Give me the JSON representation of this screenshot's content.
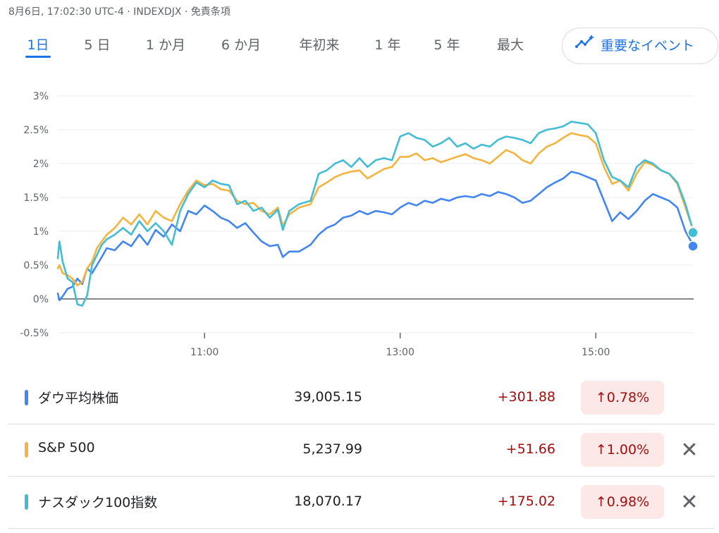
{
  "header": {
    "meta_text": "8月6日, 17:02:30 UTC-4 · INDEXDJX · 免責条項",
    "tabs": [
      {
        "label": "1日"
      },
      {
        "label": "5 日"
      },
      {
        "label": "1 か月"
      },
      {
        "label": "6 か月"
      },
      {
        "label": "年初来"
      },
      {
        "label": "1 年"
      },
      {
        "label": "5 年"
      },
      {
        "label": "最大"
      }
    ],
    "active_tab": 0,
    "events_button_label": "重要なイベント",
    "events_icon": "sparkle-chart-icon"
  },
  "chart_data": {
    "type": "line",
    "x_domain": [
      "09:30",
      "16:00"
    ],
    "ylim": [
      -0.5,
      3
    ],
    "y_ticks": [
      "3%",
      "2.5%",
      "2%",
      "1.5%",
      "1%",
      "0.5%",
      "0%",
      "-0.5%"
    ],
    "x_ticks": [
      "11:00",
      "13:00",
      "15:00"
    ],
    "grid": true,
    "baseline": 0,
    "series": [
      {
        "name": "ダウ平均株価",
        "color": "#4285f4",
        "points": [
          [
            "09:30",
            0.08
          ],
          [
            "09:31",
            -0.02
          ],
          [
            "09:33",
            0.04
          ],
          [
            "09:36",
            0.15
          ],
          [
            "09:39",
            0.18
          ],
          [
            "09:42",
            0.3
          ],
          [
            "09:45",
            0.22
          ],
          [
            "09:48",
            0.45
          ],
          [
            "09:51",
            0.38
          ],
          [
            "09:54",
            0.5
          ],
          [
            "09:57",
            0.62
          ],
          [
            "10:00",
            0.75
          ],
          [
            "10:05",
            0.72
          ],
          [
            "10:10",
            0.85
          ],
          [
            "10:15",
            0.78
          ],
          [
            "10:20",
            0.95
          ],
          [
            "10:25",
            0.8
          ],
          [
            "10:30",
            1.02
          ],
          [
            "10:35",
            0.92
          ],
          [
            "10:40",
            1.1
          ],
          [
            "10:45",
            1.0
          ],
          [
            "10:50",
            1.3
          ],
          [
            "10:55",
            1.25
          ],
          [
            "11:00",
            1.38
          ],
          [
            "11:05",
            1.3
          ],
          [
            "11:10",
            1.2
          ],
          [
            "11:15",
            1.15
          ],
          [
            "11:20",
            1.05
          ],
          [
            "11:25",
            1.12
          ],
          [
            "11:30",
            0.98
          ],
          [
            "11:35",
            0.85
          ],
          [
            "11:40",
            0.78
          ],
          [
            "11:45",
            0.8
          ],
          [
            "11:48",
            0.62
          ],
          [
            "11:52",
            0.7
          ],
          [
            "11:58",
            0.7
          ],
          [
            "12:05",
            0.8
          ],
          [
            "12:10",
            0.95
          ],
          [
            "12:15",
            1.05
          ],
          [
            "12:20",
            1.1
          ],
          [
            "12:25",
            1.2
          ],
          [
            "12:30",
            1.23
          ],
          [
            "12:35",
            1.3
          ],
          [
            "12:40",
            1.25
          ],
          [
            "12:45",
            1.3
          ],
          [
            "12:50",
            1.28
          ],
          [
            "12:55",
            1.25
          ],
          [
            "13:00",
            1.35
          ],
          [
            "13:05",
            1.42
          ],
          [
            "13:10",
            1.38
          ],
          [
            "13:15",
            1.45
          ],
          [
            "13:20",
            1.42
          ],
          [
            "13:25",
            1.48
          ],
          [
            "13:30",
            1.45
          ],
          [
            "13:35",
            1.5
          ],
          [
            "13:40",
            1.52
          ],
          [
            "13:45",
            1.5
          ],
          [
            "13:50",
            1.55
          ],
          [
            "13:55",
            1.52
          ],
          [
            "14:00",
            1.58
          ],
          [
            "14:05",
            1.55
          ],
          [
            "14:10",
            1.5
          ],
          [
            "14:15",
            1.42
          ],
          [
            "14:20",
            1.45
          ],
          [
            "14:25",
            1.55
          ],
          [
            "14:30",
            1.65
          ],
          [
            "14:35",
            1.72
          ],
          [
            "14:40",
            1.78
          ],
          [
            "14:45",
            1.88
          ],
          [
            "14:50",
            1.85
          ],
          [
            "14:55",
            1.8
          ],
          [
            "15:00",
            1.75
          ],
          [
            "15:05",
            1.45
          ],
          [
            "15:10",
            1.15
          ],
          [
            "15:15",
            1.28
          ],
          [
            "15:20",
            1.18
          ],
          [
            "15:25",
            1.3
          ],
          [
            "15:30",
            1.45
          ],
          [
            "15:35",
            1.55
          ],
          [
            "15:40",
            1.5
          ],
          [
            "15:45",
            1.45
          ],
          [
            "15:50",
            1.35
          ],
          [
            "15:55",
            1.0
          ],
          [
            "16:00",
            0.78
          ]
        ]
      },
      {
        "name": "S&P 500",
        "color": "#f6b33f",
        "points": [
          [
            "09:30",
            0.45
          ],
          [
            "09:31",
            0.5
          ],
          [
            "09:33",
            0.38
          ],
          [
            "09:36",
            0.35
          ],
          [
            "09:39",
            0.3
          ],
          [
            "09:42",
            0.2
          ],
          [
            "09:45",
            0.25
          ],
          [
            "09:48",
            0.45
          ],
          [
            "09:51",
            0.55
          ],
          [
            "09:54",
            0.75
          ],
          [
            "09:57",
            0.85
          ],
          [
            "10:00",
            0.95
          ],
          [
            "10:05",
            1.05
          ],
          [
            "10:10",
            1.2
          ],
          [
            "10:15",
            1.1
          ],
          [
            "10:20",
            1.25
          ],
          [
            "10:25",
            1.1
          ],
          [
            "10:30",
            1.3
          ],
          [
            "10:35",
            1.2
          ],
          [
            "10:40",
            1.15
          ],
          [
            "10:45",
            1.4
          ],
          [
            "10:50",
            1.6
          ],
          [
            "10:55",
            1.75
          ],
          [
            "11:00",
            1.68
          ],
          [
            "11:05",
            1.7
          ],
          [
            "11:10",
            1.62
          ],
          [
            "11:15",
            1.6
          ],
          [
            "11:20",
            1.45
          ],
          [
            "11:25",
            1.4
          ],
          [
            "11:30",
            1.42
          ],
          [
            "11:35",
            1.3
          ],
          [
            "11:40",
            1.25
          ],
          [
            "11:45",
            1.35
          ],
          [
            "11:48",
            1.08
          ],
          [
            "11:52",
            1.25
          ],
          [
            "11:58",
            1.35
          ],
          [
            "12:05",
            1.4
          ],
          [
            "12:10",
            1.65
          ],
          [
            "12:15",
            1.72
          ],
          [
            "12:20",
            1.8
          ],
          [
            "12:25",
            1.85
          ],
          [
            "12:30",
            1.88
          ],
          [
            "12:35",
            1.9
          ],
          [
            "12:40",
            1.78
          ],
          [
            "12:45",
            1.85
          ],
          [
            "12:50",
            1.92
          ],
          [
            "12:55",
            1.95
          ],
          [
            "13:00",
            2.1
          ],
          [
            "13:05",
            2.1
          ],
          [
            "13:10",
            2.15
          ],
          [
            "13:15",
            2.05
          ],
          [
            "13:20",
            2.08
          ],
          [
            "13:25",
            2.02
          ],
          [
            "13:30",
            2.06
          ],
          [
            "13:35",
            2.1
          ],
          [
            "13:40",
            2.14
          ],
          [
            "13:45",
            2.08
          ],
          [
            "13:50",
            2.05
          ],
          [
            "13:55",
            2.0
          ],
          [
            "14:00",
            2.1
          ],
          [
            "14:05",
            2.2
          ],
          [
            "14:10",
            2.15
          ],
          [
            "14:15",
            2.05
          ],
          [
            "14:20",
            2.0
          ],
          [
            "14:25",
            2.15
          ],
          [
            "14:30",
            2.25
          ],
          [
            "14:35",
            2.3
          ],
          [
            "14:40",
            2.38
          ],
          [
            "14:45",
            2.45
          ],
          [
            "14:50",
            2.42
          ],
          [
            "14:55",
            2.4
          ],
          [
            "15:00",
            2.3
          ],
          [
            "15:05",
            1.95
          ],
          [
            "15:10",
            1.7
          ],
          [
            "15:15",
            1.75
          ],
          [
            "15:20",
            1.6
          ],
          [
            "15:25",
            1.85
          ],
          [
            "15:30",
            2.02
          ],
          [
            "15:35",
            1.98
          ],
          [
            "15:40",
            1.9
          ],
          [
            "15:45",
            1.85
          ],
          [
            "15:50",
            1.7
          ],
          [
            "15:55",
            1.35
          ],
          [
            "16:00",
            1.0
          ]
        ]
      },
      {
        "name": "ナスダック100指数",
        "color": "#43bdd6",
        "points": [
          [
            "09:30",
            0.6
          ],
          [
            "09:31",
            0.85
          ],
          [
            "09:33",
            0.55
          ],
          [
            "09:36",
            0.3
          ],
          [
            "09:39",
            0.25
          ],
          [
            "09:42",
            -0.08
          ],
          [
            "09:45",
            -0.1
          ],
          [
            "09:48",
            0.05
          ],
          [
            "09:51",
            0.5
          ],
          [
            "09:54",
            0.65
          ],
          [
            "09:57",
            0.8
          ],
          [
            "10:00",
            0.88
          ],
          [
            "10:05",
            0.95
          ],
          [
            "10:10",
            1.05
          ],
          [
            "10:15",
            0.95
          ],
          [
            "10:20",
            1.15
          ],
          [
            "10:25",
            1.0
          ],
          [
            "10:30",
            1.12
          ],
          [
            "10:35",
            1.0
          ],
          [
            "10:40",
            0.8
          ],
          [
            "10:45",
            1.3
          ],
          [
            "10:50",
            1.55
          ],
          [
            "10:55",
            1.72
          ],
          [
            "11:00",
            1.65
          ],
          [
            "11:05",
            1.75
          ],
          [
            "11:10",
            1.7
          ],
          [
            "11:15",
            1.68
          ],
          [
            "11:20",
            1.4
          ],
          [
            "11:25",
            1.45
          ],
          [
            "11:30",
            1.3
          ],
          [
            "11:35",
            1.35
          ],
          [
            "11:40",
            1.2
          ],
          [
            "11:45",
            1.32
          ],
          [
            "11:48",
            1.02
          ],
          [
            "11:52",
            1.3
          ],
          [
            "11:58",
            1.4
          ],
          [
            "12:05",
            1.45
          ],
          [
            "12:10",
            1.85
          ],
          [
            "12:15",
            1.9
          ],
          [
            "12:20",
            2.0
          ],
          [
            "12:25",
            2.05
          ],
          [
            "12:30",
            1.95
          ],
          [
            "12:35",
            2.08
          ],
          [
            "12:40",
            1.95
          ],
          [
            "12:45",
            2.05
          ],
          [
            "12:50",
            2.08
          ],
          [
            "12:55",
            2.05
          ],
          [
            "13:00",
            2.4
          ],
          [
            "13:05",
            2.45
          ],
          [
            "13:10",
            2.38
          ],
          [
            "13:15",
            2.35
          ],
          [
            "13:20",
            2.25
          ],
          [
            "13:25",
            2.3
          ],
          [
            "13:30",
            2.38
          ],
          [
            "13:35",
            2.25
          ],
          [
            "13:40",
            2.3
          ],
          [
            "13:45",
            2.22
          ],
          [
            "13:50",
            2.28
          ],
          [
            "13:55",
            2.25
          ],
          [
            "14:00",
            2.35
          ],
          [
            "14:05",
            2.4
          ],
          [
            "14:10",
            2.38
          ],
          [
            "14:15",
            2.35
          ],
          [
            "14:20",
            2.3
          ],
          [
            "14:25",
            2.45
          ],
          [
            "14:30",
            2.5
          ],
          [
            "14:35",
            2.52
          ],
          [
            "14:40",
            2.55
          ],
          [
            "14:45",
            2.62
          ],
          [
            "14:50",
            2.6
          ],
          [
            "14:55",
            2.58
          ],
          [
            "15:00",
            2.45
          ],
          [
            "15:05",
            2.05
          ],
          [
            "15:10",
            1.8
          ],
          [
            "15:15",
            1.75
          ],
          [
            "15:20",
            1.65
          ],
          [
            "15:25",
            1.95
          ],
          [
            "15:30",
            2.05
          ],
          [
            "15:35",
            2.0
          ],
          [
            "15:40",
            1.9
          ],
          [
            "15:45",
            1.85
          ],
          [
            "15:50",
            1.72
          ],
          [
            "15:55",
            1.4
          ],
          [
            "16:00",
            0.98
          ]
        ]
      }
    ]
  },
  "quotes": [
    {
      "name": "ダウ平均株価",
      "color": "#4285f4",
      "price": "39,005.15",
      "change": "+301.88",
      "percent": "0.78%",
      "arrow": "↑",
      "closable": false
    },
    {
      "name": "S&P 500",
      "color": "#f6b33f",
      "price": "5,237.99",
      "change": "+51.66",
      "percent": "1.00%",
      "arrow": "↑",
      "closable": true
    },
    {
      "name": "ナスダック100指数",
      "color": "#43bdd6",
      "price": "18,070.17",
      "change": "+175.02",
      "percent": "0.98%",
      "arrow": "↑",
      "closable": true
    }
  ],
  "close_glyph": "✕"
}
